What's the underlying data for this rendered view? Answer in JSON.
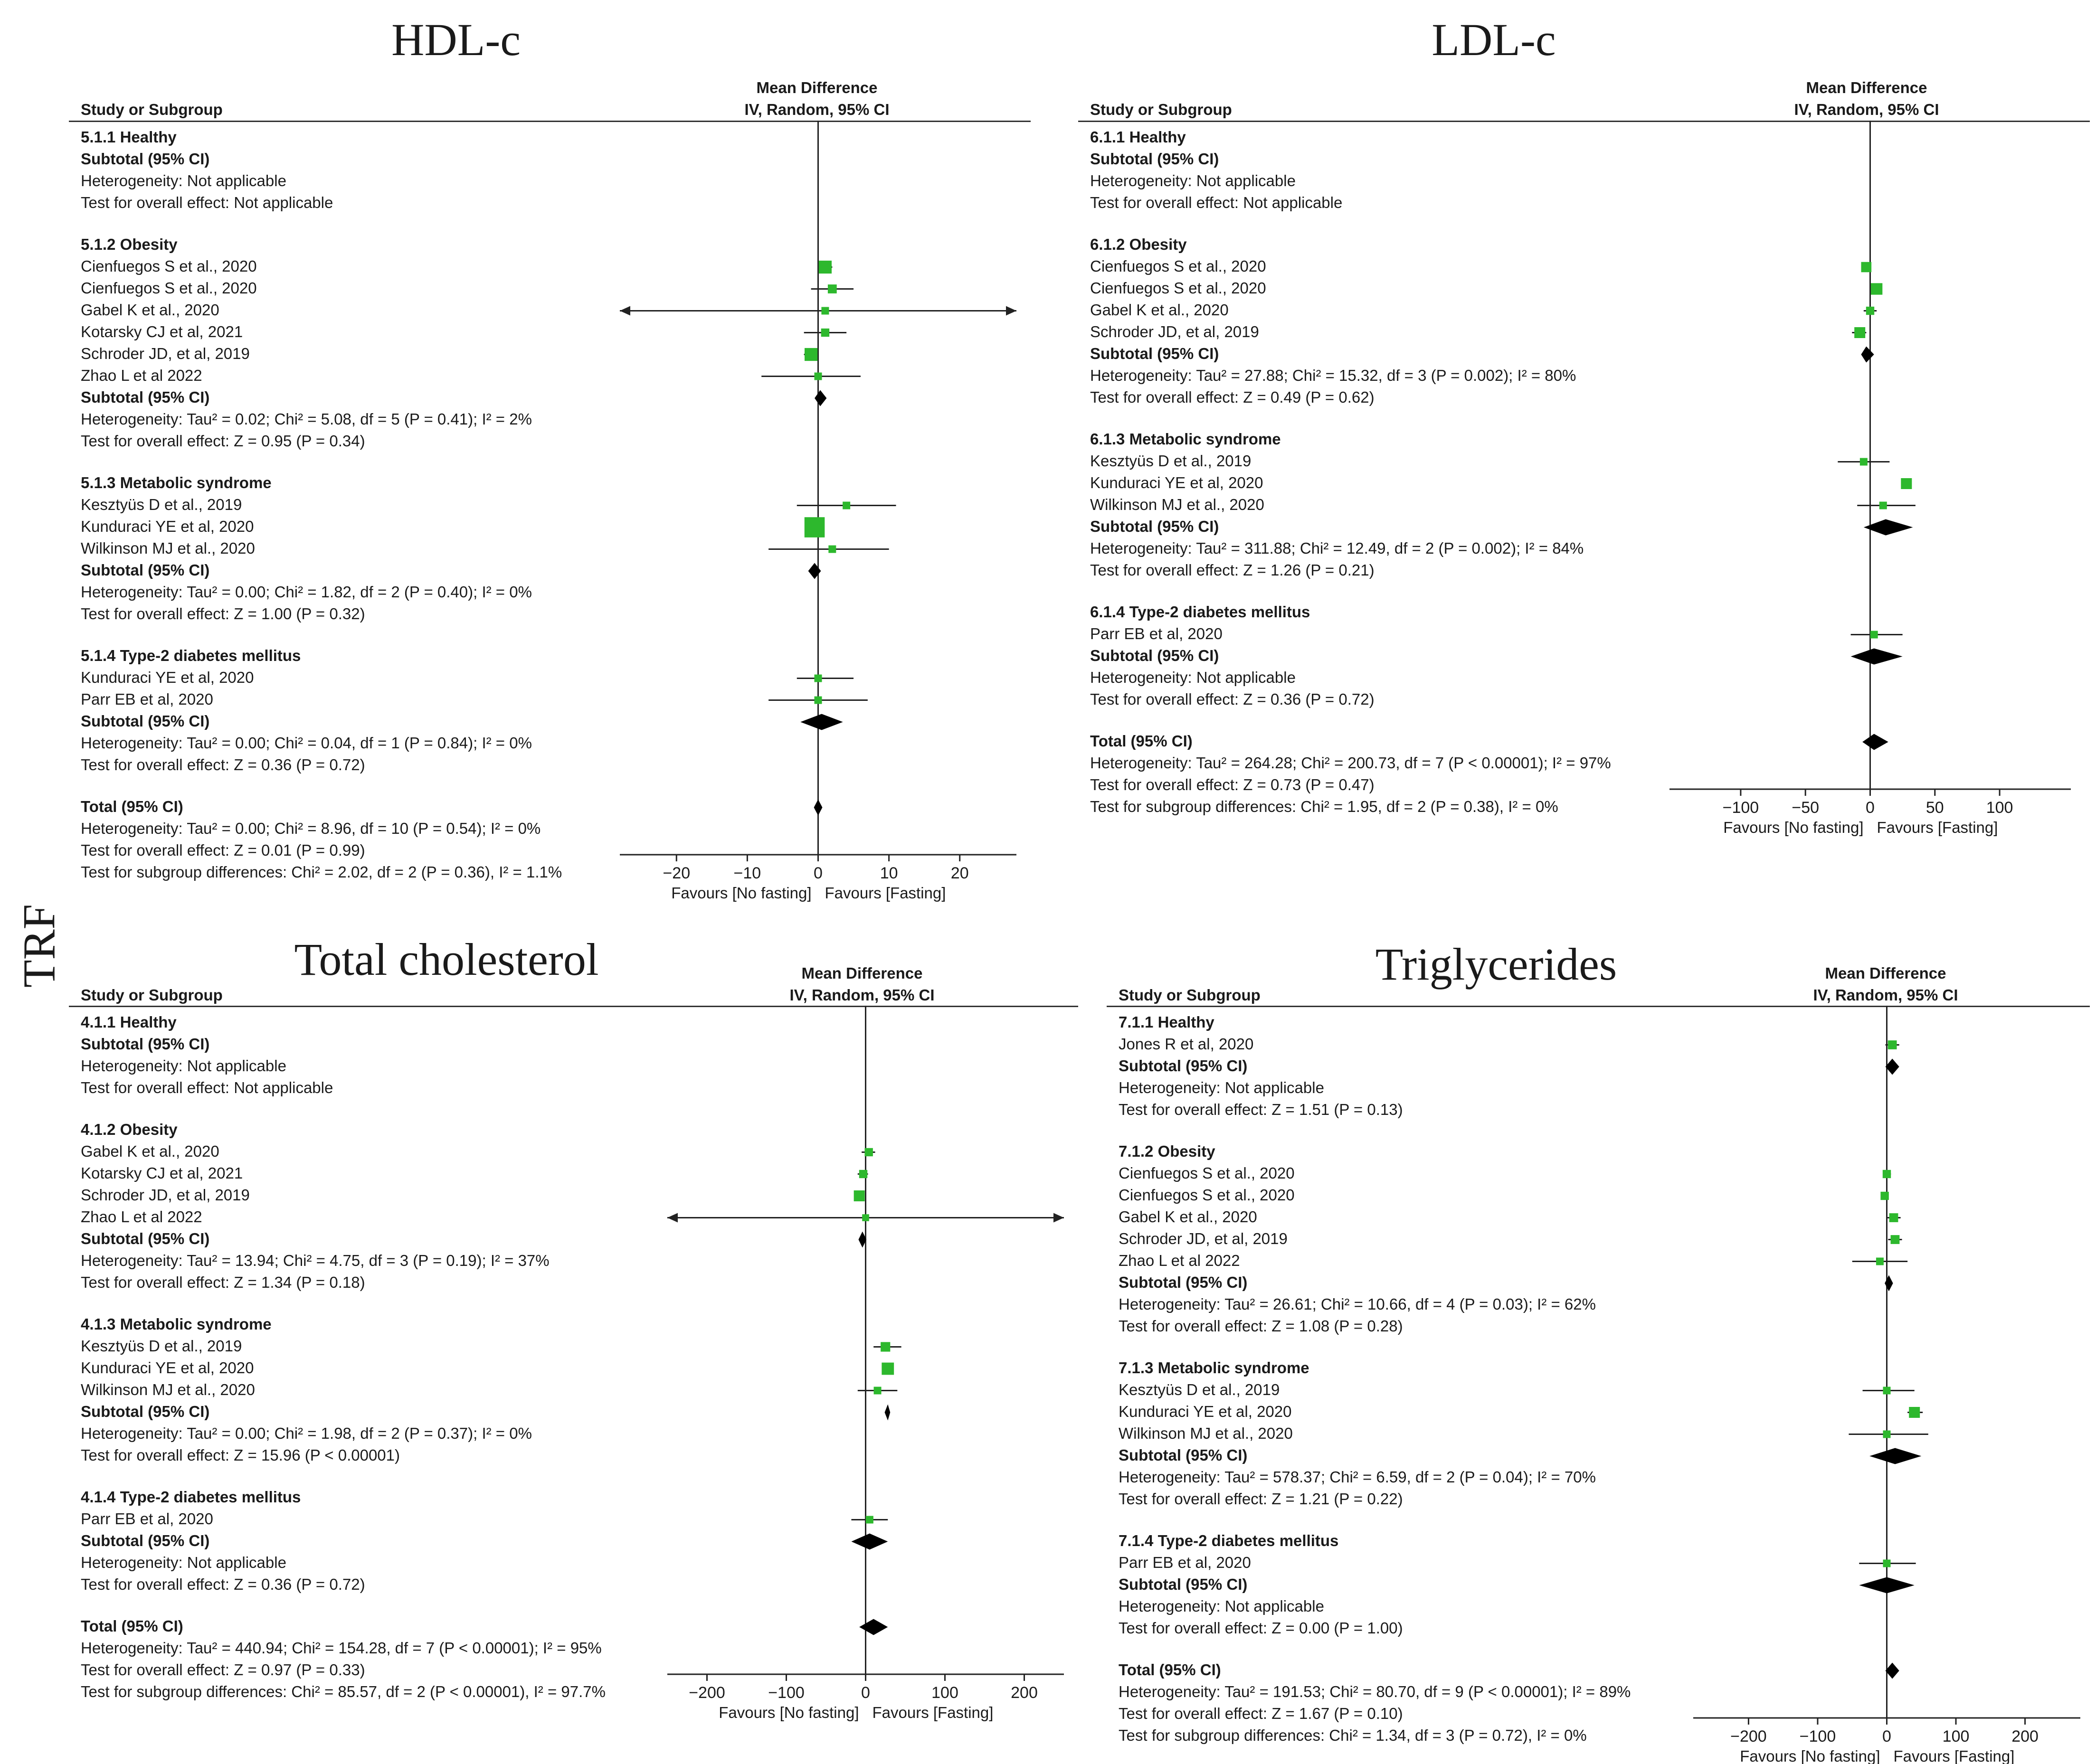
{
  "figure": {
    "side_label": "TRF",
    "colors": {
      "study_marker": "#2db82d",
      "pooled": "#000000",
      "line": "#222222"
    }
  },
  "chart_data": [
    {
      "type": "forest",
      "title": "HDL-c",
      "header": {
        "col1": "Study or Subgroup",
        "effect_line1": "Mean Difference",
        "effect_line2": "IV, Random, 95% CI"
      },
      "xlim": [
        -28,
        28
      ],
      "ticks": [
        -20,
        -10,
        0,
        10,
        20
      ],
      "favours": [
        "Favours [No fasting]",
        "Favours [Fasting]"
      ],
      "rows": [
        {
          "kind": "group",
          "text": "5.1.1 Healthy"
        },
        {
          "kind": "subtotal",
          "text": "Subtotal (95% CI)"
        },
        {
          "kind": "stat",
          "text": "Heterogeneity: Not applicable"
        },
        {
          "kind": "stat",
          "text": "Test for overall effect: Not applicable"
        },
        {
          "kind": "gap"
        },
        {
          "kind": "group",
          "text": "5.1.2 Obesity"
        },
        {
          "kind": "study",
          "text": "Cienfuegos S et al., 2020",
          "md": 1,
          "lo": 0,
          "hi": 2,
          "w": 1.3
        },
        {
          "kind": "study",
          "text": "Cienfuegos S et al., 2020",
          "md": 2,
          "lo": -1,
          "hi": 5,
          "w": 0.7
        },
        {
          "kind": "study",
          "text": "Gabel K et al., 2020",
          "md": 1,
          "lo": -28,
          "hi": 28,
          "arrows": true,
          "w": 0.5
        },
        {
          "kind": "study",
          "text": "Kotarsky CJ et al, 2021",
          "md": 1,
          "lo": -2,
          "hi": 4,
          "w": 0.6
        },
        {
          "kind": "study",
          "text": "Schroder JD, et al, 2019",
          "md": -1,
          "lo": -2,
          "hi": 0,
          "w": 1.3
        },
        {
          "kind": "study",
          "text": "Zhao L et al 2022",
          "md": 0,
          "lo": -8,
          "hi": 6,
          "w": 0.5
        },
        {
          "kind": "subtotal",
          "text": "Subtotal (95% CI)",
          "md": 0.3,
          "lo": -0.5,
          "hi": 1.2
        },
        {
          "kind": "stat",
          "text": "Heterogeneity: Tau² = 0.02; Chi² = 5.08, df = 5 (P = 0.41); I² = 2%"
        },
        {
          "kind": "stat",
          "text": "Test for overall effect: Z = 0.95 (P = 0.34)"
        },
        {
          "kind": "gap"
        },
        {
          "kind": "group",
          "text": "5.1.3 Metabolic syndrome"
        },
        {
          "kind": "study",
          "text": "Kesztyüs D et al., 2019",
          "md": 4,
          "lo": -3,
          "hi": 11,
          "w": 0.5
        },
        {
          "kind": "study",
          "text": "Kunduraci YE et al, 2020",
          "md": -0.5,
          "lo": -1.3,
          "hi": 0.3,
          "w": 2.4
        },
        {
          "kind": "study",
          "text": "Wilkinson MJ et al., 2020",
          "md": 2,
          "lo": -7,
          "hi": 10,
          "w": 0.5
        },
        {
          "kind": "subtotal",
          "text": "Subtotal (95% CI)",
          "md": -0.5,
          "lo": -1.4,
          "hi": 0.4
        },
        {
          "kind": "stat",
          "text": "Heterogeneity: Tau² = 0.00; Chi² = 1.82, df = 2 (P = 0.40); I² = 0%"
        },
        {
          "kind": "stat",
          "text": "Test for overall effect: Z = 1.00 (P = 0.32)"
        },
        {
          "kind": "gap"
        },
        {
          "kind": "group",
          "text": "5.1.4 Type-2 diabetes mellitus"
        },
        {
          "kind": "study",
          "text": "Kunduraci YE et al, 2020",
          "md": 0,
          "lo": -3,
          "hi": 5,
          "w": 0.5
        },
        {
          "kind": "study",
          "text": "Parr EB et al, 2020",
          "md": 0,
          "lo": -7,
          "hi": 7,
          "w": 0.5
        },
        {
          "kind": "subtotal",
          "text": "Subtotal (95% CI)",
          "md": 0.5,
          "lo": -2.5,
          "hi": 3.5
        },
        {
          "kind": "stat",
          "text": "Heterogeneity: Tau² = 0.00; Chi² = 0.04, df = 1 (P = 0.84); I² = 0%"
        },
        {
          "kind": "stat",
          "text": "Test for overall effect: Z = 0.36 (P = 0.72)"
        },
        {
          "kind": "gap"
        },
        {
          "kind": "total",
          "text": "Total (95% CI)",
          "md": 0,
          "lo": -0.6,
          "hi": 0.6
        },
        {
          "kind": "stat",
          "text": "Heterogeneity: Tau² = 0.00; Chi² = 8.96, df = 10 (P = 0.54); I² = 0%"
        },
        {
          "kind": "stat",
          "text": "Test for overall effect: Z = 0.01 (P = 0.99)"
        },
        {
          "kind": "stat",
          "text": "Test for subgroup differences: Chi² = 2.02, df = 2 (P = 0.36), I² = 1.1%"
        }
      ]
    },
    {
      "type": "forest",
      "title": "LDL-c",
      "header": {
        "col1": "Study or Subgroup",
        "effect_line1": "Mean Difference",
        "effect_line2": "IV, Random, 95% CI"
      },
      "xlim": [
        -155,
        155
      ],
      "ticks": [
        -100,
        -50,
        0,
        50,
        100
      ],
      "favours": [
        "Favours [No fasting]",
        "Favours [Fasting]"
      ],
      "rows": [
        {
          "kind": "group",
          "text": "6.1.1 Healthy"
        },
        {
          "kind": "subtotal",
          "text": "Subtotal (95% CI)"
        },
        {
          "kind": "stat",
          "text": "Heterogeneity: Not applicable"
        },
        {
          "kind": "stat",
          "text": "Test for overall effect: Not applicable"
        },
        {
          "kind": "gap"
        },
        {
          "kind": "group",
          "text": "6.1.2 Obesity"
        },
        {
          "kind": "study",
          "text": "Cienfuegos S et al., 2020",
          "md": -3,
          "lo": -5,
          "hi": 0,
          "w": 0.9
        },
        {
          "kind": "study",
          "text": "Cienfuegos S et al., 2020",
          "md": 5,
          "lo": 1,
          "hi": 8,
          "w": 1.1
        },
        {
          "kind": "study",
          "text": "Gabel K et al., 2020",
          "md": 0,
          "lo": -5,
          "hi": 5,
          "w": 0.6
        },
        {
          "kind": "study",
          "text": "Schroder JD, et al, 2019",
          "md": -8,
          "lo": -14,
          "hi": -3,
          "w": 1.0
        },
        {
          "kind": "subtotal",
          "text": "Subtotal (95% CI)",
          "md": -3,
          "lo": -7,
          "hi": 3
        },
        {
          "kind": "stat",
          "text": "Heterogeneity: Tau² = 27.88; Chi² = 15.32, df = 3 (P = 0.002); I² = 80%"
        },
        {
          "kind": "stat",
          "text": "Test for overall effect: Z = 0.49 (P = 0.62)"
        },
        {
          "kind": "gap"
        },
        {
          "kind": "group",
          "text": "6.1.3 Metabolic syndrome"
        },
        {
          "kind": "study",
          "text": "Kesztyüs D et al., 2019",
          "md": -5,
          "lo": -25,
          "hi": 15,
          "w": 0.5
        },
        {
          "kind": "study",
          "text": "Kunduraci YE et al, 2020",
          "md": 28,
          "lo": 25,
          "hi": 32,
          "w": 1.0
        },
        {
          "kind": "study",
          "text": "Wilkinson MJ et al., 2020",
          "md": 10,
          "lo": -10,
          "hi": 35,
          "w": 0.5
        },
        {
          "kind": "subtotal",
          "text": "Subtotal (95% CI)",
          "md": 12,
          "lo": -5,
          "hi": 33
        },
        {
          "kind": "stat",
          "text": "Heterogeneity: Tau² = 311.88; Chi² = 12.49, df = 2 (P = 0.002); I² = 84%"
        },
        {
          "kind": "stat",
          "text": "Test for overall effect: Z = 1.26 (P = 0.21)"
        },
        {
          "kind": "gap"
        },
        {
          "kind": "group",
          "text": "6.1.4 Type-2 diabetes mellitus"
        },
        {
          "kind": "study",
          "text": "Parr EB et al, 2020",
          "md": 3,
          "lo": -15,
          "hi": 25,
          "w": 0.5
        },
        {
          "kind": "subtotal",
          "text": "Subtotal (95% CI)",
          "md": 3,
          "lo": -15,
          "hi": 25
        },
        {
          "kind": "stat",
          "text": "Heterogeneity: Not applicable"
        },
        {
          "kind": "stat",
          "text": "Test for overall effect: Z = 0.36 (P = 0.72)"
        },
        {
          "kind": "gap"
        },
        {
          "kind": "total",
          "text": "Total (95% CI)",
          "md": 3,
          "lo": -6,
          "hi": 14
        },
        {
          "kind": "stat",
          "text": "Heterogeneity: Tau² = 264.28; Chi² = 200.73, df = 7 (P < 0.00001); I² = 97%"
        },
        {
          "kind": "stat",
          "text": "Test for overall effect: Z = 0.73 (P = 0.47)"
        },
        {
          "kind": "stat",
          "text": "Test for subgroup differences: Chi² = 1.95, df = 2 (P = 0.38), I² = 0%"
        }
      ]
    },
    {
      "type": "forest",
      "title": "Total cholesterol",
      "header": {
        "col1": "Study or Subgroup",
        "effect_line1": "Mean Difference",
        "effect_line2": "IV, Random, 95% CI"
      },
      "xlim": [
        -250,
        250
      ],
      "ticks": [
        -200,
        -100,
        0,
        100,
        200
      ],
      "favours": [
        "Favours [No fasting]",
        "Favours [Fasting]"
      ],
      "rows": [
        {
          "kind": "group",
          "text": "4.1.1 Healthy"
        },
        {
          "kind": "subtotal",
          "text": "Subtotal (95% CI)"
        },
        {
          "kind": "stat",
          "text": "Heterogeneity: Not applicable"
        },
        {
          "kind": "stat",
          "text": "Test for overall effect: Not applicable"
        },
        {
          "kind": "gap"
        },
        {
          "kind": "group",
          "text": "4.1.2 Obesity"
        },
        {
          "kind": "study",
          "text": "Gabel K et al., 2020",
          "md": 4,
          "lo": -5,
          "hi": 12,
          "w": 0.6
        },
        {
          "kind": "study",
          "text": "Kotarsky CJ et al, 2021",
          "md": -3,
          "lo": -10,
          "hi": 3,
          "w": 0.6
        },
        {
          "kind": "study",
          "text": "Schroder JD, et al, 2019",
          "md": -8,
          "lo": -12,
          "hi": -4,
          "w": 1.0
        },
        {
          "kind": "study",
          "text": "Zhao L et al 2022",
          "md": 0,
          "lo": -250,
          "hi": 250,
          "arrows": true,
          "w": 0.4
        },
        {
          "kind": "subtotal",
          "text": "Subtotal (95% CI)",
          "md": -4,
          "lo": -9,
          "hi": 1
        },
        {
          "kind": "stat",
          "text": "Heterogeneity: Tau² = 13.94; Chi² = 4.75, df = 3 (P = 0.19); I² = 37%"
        },
        {
          "kind": "stat",
          "text": "Test for overall effect: Z = 1.34 (P = 0.18)"
        },
        {
          "kind": "gap"
        },
        {
          "kind": "group",
          "text": "4.1.3 Metabolic syndrome"
        },
        {
          "kind": "study",
          "text": "Kesztyüs D et al., 2019",
          "md": 25,
          "lo": 10,
          "hi": 45,
          "w": 0.8
        },
        {
          "kind": "study",
          "text": "Kunduraci YE et al, 2020",
          "md": 28,
          "lo": 26,
          "hi": 31,
          "w": 1.2
        },
        {
          "kind": "study",
          "text": "Wilkinson MJ et al., 2020",
          "md": 15,
          "lo": -10,
          "hi": 40,
          "w": 0.5
        },
        {
          "kind": "subtotal",
          "text": "Subtotal (95% CI)",
          "md": 28,
          "lo": 24,
          "hi": 31
        },
        {
          "kind": "stat",
          "text": "Heterogeneity: Tau² = 0.00; Chi² = 1.98, df = 2 (P = 0.37); I² = 0%"
        },
        {
          "kind": "stat",
          "text": "Test for overall effect: Z = 15.96 (P < 0.00001)"
        },
        {
          "kind": "gap"
        },
        {
          "kind": "group",
          "text": "4.1.4 Type-2 diabetes mellitus"
        },
        {
          "kind": "study",
          "text": "Parr EB et al, 2020",
          "md": 5,
          "lo": -18,
          "hi": 28,
          "w": 0.5
        },
        {
          "kind": "subtotal",
          "text": "Subtotal (95% CI)",
          "md": 5,
          "lo": -18,
          "hi": 28
        },
        {
          "kind": "stat",
          "text": "Heterogeneity: Not applicable"
        },
        {
          "kind": "stat",
          "text": "Test for overall effect: Z = 0.36 (P = 0.72)"
        },
        {
          "kind": "gap"
        },
        {
          "kind": "total",
          "text": "Total (95% CI)",
          "md": 10,
          "lo": -8,
          "hi": 28
        },
        {
          "kind": "stat",
          "text": "Heterogeneity: Tau² = 440.94; Chi² = 154.28, df = 7 (P < 0.00001); I² = 95%"
        },
        {
          "kind": "stat",
          "text": "Test for overall effect: Z = 0.97 (P = 0.33)"
        },
        {
          "kind": "stat",
          "text": "Test for subgroup differences: Chi² = 85.57, df = 2 (P < 0.00001), I² = 97.7%"
        }
      ]
    },
    {
      "type": "forest",
      "title": "Triglycerides",
      "header": {
        "col1": "Study or Subgroup",
        "effect_line1": "Mean Difference",
        "effect_line2": "IV, Random, 95% CI"
      },
      "xlim": [
        -280,
        280
      ],
      "ticks": [
        -200,
        -100,
        0,
        100,
        200
      ],
      "favours": [
        "Favours [No fasting]",
        "Favours [Fasting]"
      ],
      "rows": [
        {
          "kind": "group",
          "text": "7.1.1 Healthy"
        },
        {
          "kind": "study",
          "text": "Jones R et al,  2020",
          "md": 8,
          "lo": -2,
          "hi": 18,
          "w": 0.7
        },
        {
          "kind": "subtotal",
          "text": "Subtotal (95% CI)",
          "md": 8,
          "lo": -2,
          "hi": 18
        },
        {
          "kind": "stat",
          "text": "Heterogeneity: Not applicable"
        },
        {
          "kind": "stat",
          "text": "Test for overall effect: Z = 1.51 (P = 0.13)"
        },
        {
          "kind": "gap"
        },
        {
          "kind": "group",
          "text": "7.1.2 Obesity"
        },
        {
          "kind": "study",
          "text": "Cienfuegos S et al., 2020",
          "md": 0,
          "lo": -5,
          "hi": 6,
          "w": 0.6
        },
        {
          "kind": "study",
          "text": "Cienfuegos S et al., 2020",
          "md": -3,
          "lo": -8,
          "hi": 2,
          "w": 0.6
        },
        {
          "kind": "study",
          "text": "Gabel K et al., 2020",
          "md": 10,
          "lo": 0,
          "hi": 20,
          "w": 0.7
        },
        {
          "kind": "study",
          "text": "Schroder JD, et al, 2019",
          "md": 12,
          "lo": 2,
          "hi": 22,
          "w": 0.7
        },
        {
          "kind": "study",
          "text": "Zhao L et al 2022",
          "md": -10,
          "lo": -50,
          "hi": 30,
          "w": 0.5
        },
        {
          "kind": "subtotal",
          "text": "Subtotal (95% CI)",
          "md": 3,
          "lo": -3,
          "hi": 9
        },
        {
          "kind": "stat",
          "text": "Heterogeneity: Tau² = 26.61; Chi² = 10.66, df = 4 (P = 0.03); I² = 62%"
        },
        {
          "kind": "stat",
          "text": "Test for overall effect: Z = 1.08 (P = 0.28)"
        },
        {
          "kind": "gap"
        },
        {
          "kind": "group",
          "text": "7.1.3 Metabolic syndrome"
        },
        {
          "kind": "study",
          "text": "Kesztyüs D et al., 2019",
          "md": 0,
          "lo": -35,
          "hi": 40,
          "w": 0.5
        },
        {
          "kind": "study",
          "text": "Kunduraci YE et al, 2020",
          "md": 40,
          "lo": 30,
          "hi": 52,
          "w": 1.0
        },
        {
          "kind": "study",
          "text": "Wilkinson MJ et al., 2020",
          "md": 0,
          "lo": -55,
          "hi": 60,
          "w": 0.5
        },
        {
          "kind": "subtotal",
          "text": "Subtotal (95% CI)",
          "md": 12,
          "lo": -25,
          "hi": 50
        },
        {
          "kind": "stat",
          "text": "Heterogeneity: Tau² = 578.37; Chi² = 6.59, df = 2 (P = 0.04); I² = 70%"
        },
        {
          "kind": "stat",
          "text": "Test for overall effect: Z = 1.21 (P = 0.22)"
        },
        {
          "kind": "gap"
        },
        {
          "kind": "group",
          "text": "7.1.4 Type-2 diabetes mellitus"
        },
        {
          "kind": "study",
          "text": "Parr EB et al, 2020",
          "md": 0,
          "lo": -40,
          "hi": 42,
          "w": 0.5
        },
        {
          "kind": "subtotal",
          "text": "Subtotal (95% CI)",
          "md": 0,
          "lo": -40,
          "hi": 40
        },
        {
          "kind": "stat",
          "text": "Heterogeneity: Not applicable"
        },
        {
          "kind": "stat",
          "text": "Test for overall effect: Z = 0.00 (P = 1.00)"
        },
        {
          "kind": "gap"
        },
        {
          "kind": "total",
          "text": "Total (95% CI)",
          "md": 8,
          "lo": -2,
          "hi": 18
        },
        {
          "kind": "stat",
          "text": "Heterogeneity: Tau² = 191.53; Chi² = 80.70, df = 9 (P < 0.00001); I² = 89%"
        },
        {
          "kind": "stat",
          "text": "Test for overall effect: Z = 1.67 (P = 0.10)"
        },
        {
          "kind": "stat",
          "text": "Test for subgroup differences: Chi² = 1.34, df = 3 (P = 0.72), I² = 0%"
        }
      ]
    }
  ]
}
